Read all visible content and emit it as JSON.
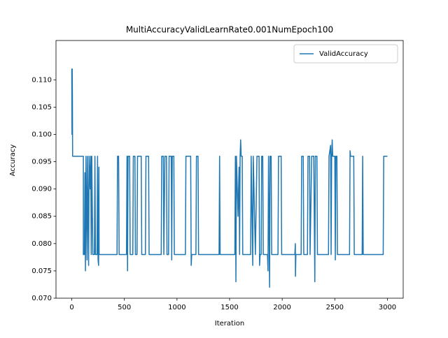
{
  "chart_data": {
    "type": "line",
    "title": "MultiAccuracyValidLearnRate0.001NumEpoch100",
    "xlabel": "Iteration",
    "ylabel": "Accuracy",
    "legend": "upper right",
    "xlim": [
      -150,
      3150
    ],
    "xticks": [
      0,
      500,
      1000,
      1500,
      2000,
      2500,
      3000
    ],
    "ylim": [
      0.07,
      0.1172
    ],
    "yticks": [
      {
        "value": 0.07,
        "label": "0.070"
      },
      {
        "value": 0.075,
        "label": "0.075"
      },
      {
        "value": 0.08,
        "label": "0.080"
      },
      {
        "value": 0.085,
        "label": "0.085"
      },
      {
        "value": 0.09,
        "label": "0.090"
      },
      {
        "value": 0.095,
        "label": "0.095"
      },
      {
        "value": 0.1,
        "label": "0.100"
      },
      {
        "value": 0.105,
        "label": "0.105"
      },
      {
        "value": 0.11,
        "label": "0.110"
      }
    ],
    "x": [
      0,
      2,
      4,
      6,
      8,
      110,
      110,
      120,
      125,
      130,
      135,
      145,
      150,
      160,
      165,
      175,
      180,
      185,
      190,
      200,
      215,
      220,
      225,
      240,
      245,
      250,
      255,
      258,
      260,
      430,
      435,
      445,
      450,
      520,
      525,
      530,
      535,
      550,
      555,
      580,
      585,
      600,
      605,
      620,
      625,
      660,
      665,
      700,
      705,
      730,
      735,
      850,
      855,
      870,
      875,
      885,
      900,
      905,
      920,
      925,
      945,
      950,
      955,
      970,
      975,
      1080,
      1085,
      1130,
      1135,
      1140,
      1180,
      1185,
      1200,
      1205,
      1400,
      1405,
      1410,
      1550,
      1555,
      1560,
      1565,
      1580,
      1590,
      1595,
      1600,
      1605,
      1610,
      1620,
      1625,
      1700,
      1705,
      1720,
      1725,
      1745,
      1760,
      1780,
      1785,
      1790,
      1800,
      1805,
      1815,
      1820,
      1860,
      1865,
      1870,
      1880,
      1885,
      1895,
      1900,
      1960,
      1965,
      1990,
      1995,
      2120,
      2125,
      2126,
      2130,
      2180,
      2185,
      2200,
      2205,
      2240,
      2245,
      2260,
      2265,
      2280,
      2300,
      2310,
      2315,
      2330,
      2335,
      2440,
      2445,
      2460,
      2465,
      2470,
      2475,
      2480,
      2500,
      2505,
      2510,
      2520,
      2525,
      2640,
      2645,
      2650,
      2680,
      2685,
      2760,
      2765,
      2770,
      2960,
      2965,
      3000
    ],
    "series": [
      {
        "name": "ValidAccuracy",
        "color": "#1f77b4",
        "values": [
          0.112,
          0.1,
          0.112,
          0.107,
          0.096,
          0.096,
          0.078,
          0.078,
          0.093,
          0.075,
          0.096,
          0.077,
          0.096,
          0.076,
          0.096,
          0.09,
          0.096,
          0.078,
          0.096,
          0.078,
          0.078,
          0.096,
          0.078,
          0.078,
          0.096,
          0.077,
          0.076,
          0.094,
          0.078,
          0.078,
          0.096,
          0.096,
          0.078,
          0.078,
          0.096,
          0.075,
          0.096,
          0.096,
          0.078,
          0.078,
          0.096,
          0.096,
          0.078,
          0.078,
          0.096,
          0.096,
          0.078,
          0.078,
          0.096,
          0.096,
          0.078,
          0.078,
          0.096,
          0.096,
          0.078,
          0.096,
          0.096,
          0.078,
          0.078,
          0.096,
          0.096,
          0.077,
          0.096,
          0.096,
          0.078,
          0.078,
          0.096,
          0.096,
          0.076,
          0.078,
          0.078,
          0.096,
          0.096,
          0.078,
          0.078,
          0.096,
          0.078,
          0.078,
          0.096,
          0.073,
          0.096,
          0.085,
          0.094,
          0.078,
          0.096,
          0.099,
          0.096,
          0.096,
          0.078,
          0.078,
          0.096,
          0.076,
          0.096,
          0.078,
          0.096,
          0.096,
          0.076,
          0.078,
          0.078,
          0.096,
          0.096,
          0.078,
          0.078,
          0.075,
          0.096,
          0.072,
          0.096,
          0.096,
          0.078,
          0.078,
          0.096,
          0.096,
          0.078,
          0.078,
          0.08,
          0.074,
          0.078,
          0.078,
          0.096,
          0.096,
          0.078,
          0.078,
          0.096,
          0.096,
          0.078,
          0.096,
          0.096,
          0.073,
          0.096,
          0.096,
          0.078,
          0.078,
          0.096,
          0.098,
          0.078,
          0.096,
          0.099,
          0.096,
          0.096,
          0.077,
          0.096,
          0.096,
          0.078,
          0.078,
          0.097,
          0.096,
          0.096,
          0.078,
          0.078,
          0.096,
          0.078,
          0.078,
          0.096,
          0.096
        ]
      }
    ]
  }
}
